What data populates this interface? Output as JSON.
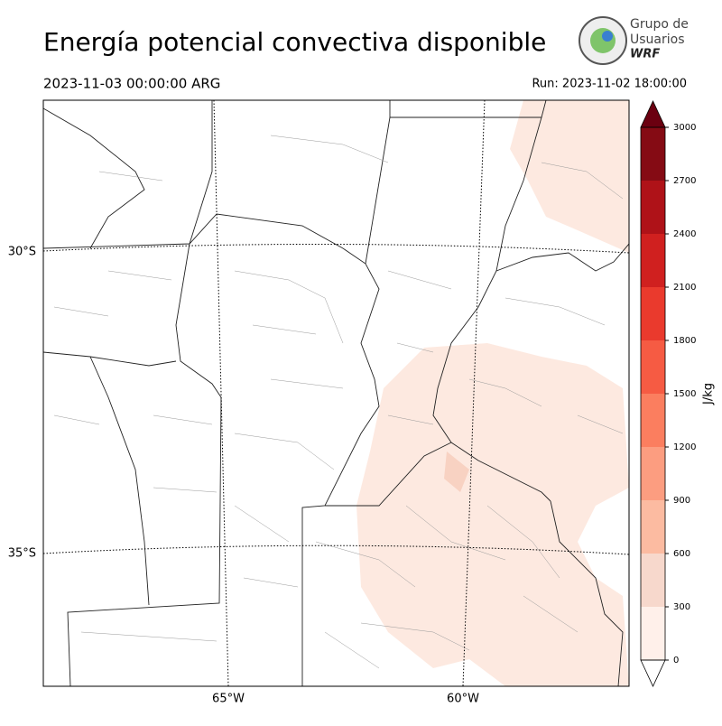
{
  "header": {
    "title": "Energía potencial convectiva disponible",
    "valid_time": "2023-11-03 00:00:00 ARG",
    "run": "Run: 2023-11-02 18:00:00"
  },
  "logo": {
    "line1": "Grupo de",
    "line2": "Usuarios",
    "line3": "WRF"
  },
  "map": {
    "lat_labels": [
      "30°S",
      "35°S"
    ],
    "lon_labels": [
      "65°W",
      "60°W"
    ]
  },
  "colorbar": {
    "label": "J/kg",
    "lim": [
      0,
      3000
    ],
    "ticks": [
      0,
      300,
      600,
      900,
      1200,
      1500,
      1800,
      2100,
      2400,
      2700,
      3000
    ],
    "colors": [
      "#fff0ea",
      "#f7d8cc",
      "#fcbba1",
      "#fc9d80",
      "#fb7e5f",
      "#f65b43",
      "#ea3a2d",
      "#d0201f",
      "#af1218",
      "#850b14"
    ],
    "over_color": "#6b0010",
    "under_color": "#ffffff"
  }
}
